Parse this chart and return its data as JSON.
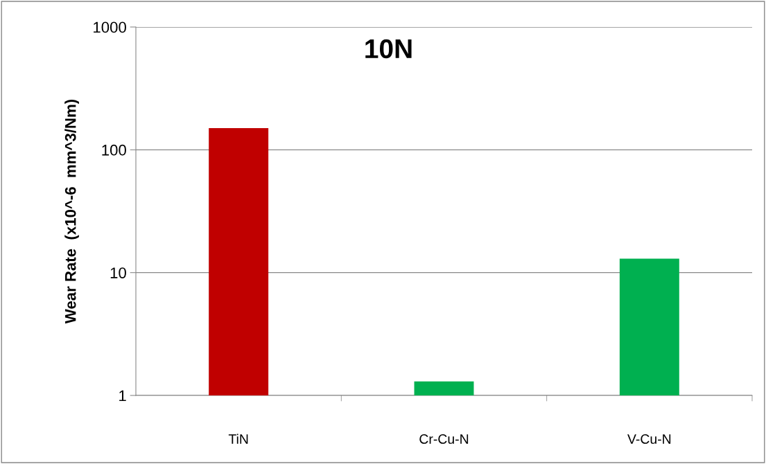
{
  "chart_data": {
    "type": "bar",
    "title": "10N",
    "ylabel": "Wear Rate  (x10^-6  mm^3/Nm)",
    "categories": [
      "TiN",
      "Cr-Cu-N",
      "V-Cu-N"
    ],
    "values": [
      150,
      1.3,
      13
    ],
    "colors": [
      "#c00000",
      "#00b050",
      "#00b050"
    ],
    "log": "y",
    "ylim": [
      1,
      1000
    ],
    "yticks": [
      1,
      10,
      100,
      1000
    ],
    "grid": "y",
    "legend": false
  }
}
